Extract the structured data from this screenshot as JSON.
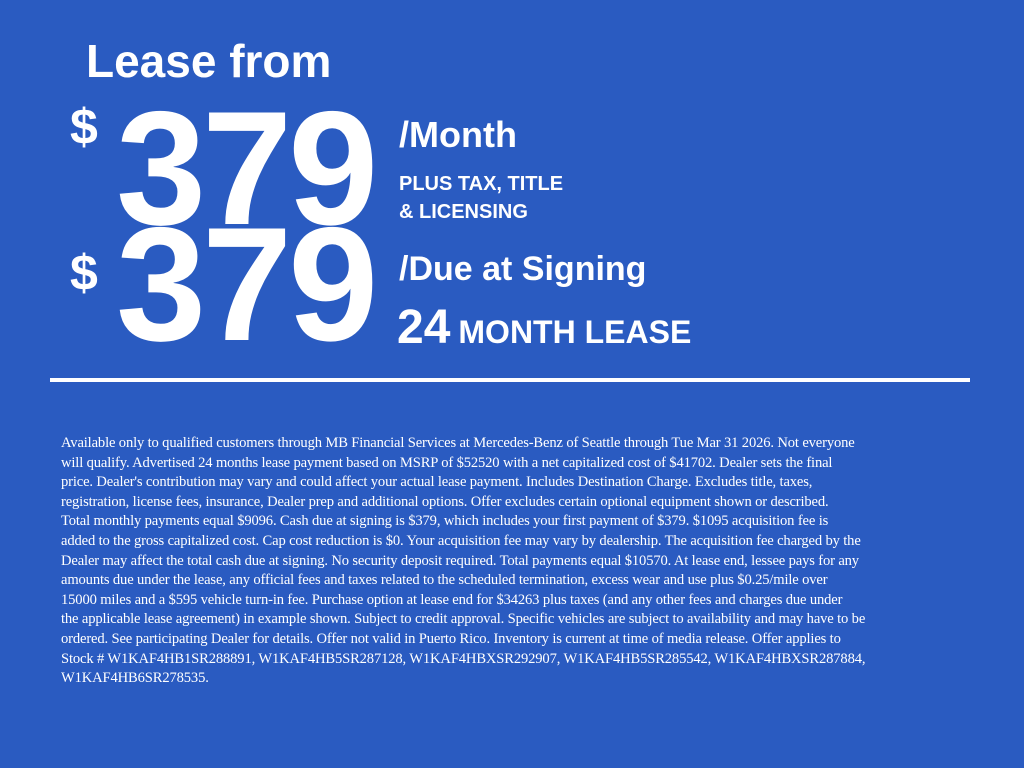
{
  "headline": "Lease from",
  "monthly": {
    "currency": "$",
    "amount": "379",
    "label": "/Month",
    "note_lines": [
      "PLUS TAX, TITLE",
      "& LICENSING"
    ]
  },
  "due": {
    "currency": "$",
    "amount": "379",
    "label": "/Due at Signing"
  },
  "term": {
    "months": "24",
    "label": "MONTH LEASE"
  },
  "colors": {
    "background": "#2a5bc1",
    "text": "#ffffff"
  },
  "disclaimer_lines": [
    "Available only to qualified customers through MB Financial Services at Mercedes-Benz of Seattle through Tue Mar 31 2026. Not everyone",
    "will qualify. Advertised 24 months lease payment based on MSRP of $52520 with a net capitalized cost of $41702. Dealer sets the final",
    "price. Dealer's contribution may vary and could affect your actual lease payment. Includes Destination Charge. Excludes title, taxes,",
    "registration, license fees, insurance, Dealer prep and additional options. Offer excludes certain optional equipment shown or described.",
    "Total monthly payments equal $9096. Cash due at signing is $379, which includes your first payment of $379. $1095 acquisition fee is",
    "added to the gross capitalized cost. Cap cost reduction is $0. Your acquisition fee may vary by dealership. The acquisition fee charged by the",
    "Dealer may affect the total cash due at signing. No security deposit required. Total payments equal $10570. At lease end, lessee pays for any",
    "amounts due under the lease, any official fees and taxes related to the scheduled termination, excess wear and use plus $0.25/mile over",
    "15000 miles and a $595 vehicle turn-in fee. Purchase option at lease end for $34263 plus taxes (and any other fees and charges due under",
    "the applicable lease agreement) in example shown. Subject to credit approval. Specific vehicles are subject to availability and may have to be",
    "ordered. See participating Dealer for details. Offer not valid in Puerto Rico. Inventory is current at time of media release. Offer applies to",
    "Stock # W1KAF4HB1SR288891, W1KAF4HB5SR287128, W1KAF4HBXSR292907, W1KAF4HB5SR285542, W1KAF4HBXSR287884,",
    "W1KAF4HB6SR278535."
  ]
}
